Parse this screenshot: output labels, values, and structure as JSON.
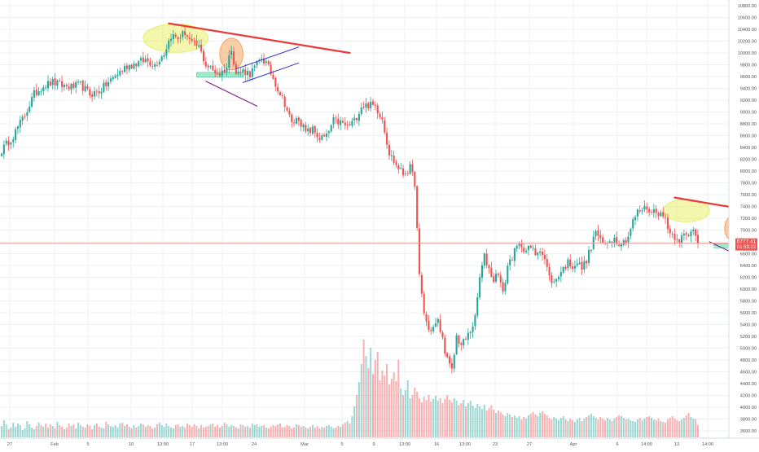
{
  "chart_data": {
    "type": "candlestick",
    "title": "",
    "xlabel": "",
    "ylabel": "",
    "grid": true,
    "ylim": [
      3450,
      10900
    ],
    "y_ticks": [
      3600,
      3800,
      4000,
      4200,
      4400,
      4600,
      4800,
      5000,
      5200,
      5400,
      5600,
      5800,
      6000,
      6200,
      6400,
      6600,
      6800,
      7000,
      7200,
      7400,
      7600,
      7800,
      8000,
      8200,
      8400,
      8600,
      8800,
      9000,
      9200,
      9400,
      9600,
      9800,
      10000,
      10200,
      10400,
      10600,
      10800
    ],
    "y_tick_labels": [
      "3600.00",
      "3800.00",
      "4000.00",
      "4200.00",
      "4400.00",
      "4600.00",
      "4800.00",
      "5000.00",
      "5200.00",
      "5400.00",
      "5600.00",
      "5800.00",
      "6000.00",
      "6200.00",
      "6400.00",
      "6600.00",
      "6800.00",
      "7000.00",
      "7200.00",
      "7400.00",
      "7600.00",
      "7800.00",
      "8000.00",
      "8200.00",
      "8400.00",
      "8600.00",
      "8800.00",
      "9000.00",
      "9200.00",
      "9400.00",
      "9600.00",
      "9800.00",
      "10000.00",
      "10200.00",
      "10400.00",
      "10600.00",
      "10800.00"
    ],
    "x_tick_labels": [
      "27",
      "Feb",
      "5",
      "10",
      "13:00",
      "17",
      "13:00",
      "24",
      "Mar",
      "5",
      "9",
      "13:00",
      "16",
      "13:00",
      "23",
      "27",
      "Apr",
      "6",
      "14:00",
      "13",
      "14:00"
    ],
    "price_level": 6777.41,
    "price_label": "6777.41",
    "countdown_label": "01:53:22",
    "candle_anchors": [
      [
        0,
        8350
      ],
      [
        5,
        8600
      ],
      [
        10,
        8950
      ],
      [
        14,
        9300
      ],
      [
        18,
        9450
      ],
      [
        22,
        9500
      ],
      [
        26,
        9450
      ],
      [
        30,
        9420
      ],
      [
        34,
        9460
      ],
      [
        38,
        9300
      ],
      [
        42,
        9350
      ],
      [
        46,
        9500
      ],
      [
        50,
        9650
      ],
      [
        54,
        9780
      ],
      [
        58,
        9820
      ],
      [
        62,
        9880
      ],
      [
        66,
        9800
      ],
      [
        70,
        10000
      ],
      [
        73,
        10300
      ],
      [
        76,
        10250
      ],
      [
        79,
        10350
      ],
      [
        82,
        10150
      ],
      [
        85,
        10100
      ],
      [
        88,
        9800
      ],
      [
        91,
        9700
      ],
      [
        94,
        9650
      ],
      [
        97,
        9750
      ],
      [
        99,
        10100
      ],
      [
        101,
        9650
      ],
      [
        104,
        9700
      ],
      [
        107,
        9650
      ],
      [
        110,
        9800
      ],
      [
        112,
        9920
      ],
      [
        114,
        9820
      ],
      [
        116,
        9660
      ],
      [
        119,
        9400
      ],
      [
        122,
        9150
      ],
      [
        125,
        8800
      ],
      [
        128,
        8900
      ],
      [
        131,
        8650
      ],
      [
        134,
        8700
      ],
      [
        137,
        8550
      ],
      [
        140,
        8580
      ],
      [
        143,
        8850
      ],
      [
        146,
        8820
      ],
      [
        149,
        8750
      ],
      [
        152,
        8850
      ],
      [
        155,
        9100
      ],
      [
        158,
        9120
      ],
      [
        161,
        9100
      ],
      [
        164,
        8900
      ],
      [
        167,
        8300
      ],
      [
        170,
        8100
      ],
      [
        173,
        7950
      ],
      [
        176,
        8050
      ],
      [
        178,
        7800
      ],
      [
        180,
        6200
      ],
      [
        182,
        5600
      ],
      [
        184,
        5300
      ],
      [
        186,
        5350
      ],
      [
        188,
        5450
      ],
      [
        190,
        5150
      ],
      [
        192,
        4800
      ],
      [
        194,
        4600
      ],
      [
        196,
        5200
      ],
      [
        198,
        5050
      ],
      [
        200,
        5150
      ],
      [
        202,
        5300
      ],
      [
        204,
        5500
      ],
      [
        206,
        6200
      ],
      [
        208,
        6550
      ],
      [
        210,
        6350
      ],
      [
        212,
        6150
      ],
      [
        214,
        6300
      ],
      [
        216,
        5900
      ],
      [
        218,
        6400
      ],
      [
        220,
        6550
      ],
      [
        222,
        6700
      ],
      [
        224,
        6750
      ],
      [
        226,
        6650
      ],
      [
        228,
        6700
      ],
      [
        230,
        6600
      ],
      [
        232,
        6700
      ],
      [
        234,
        6500
      ],
      [
        236,
        6200
      ],
      [
        238,
        6100
      ],
      [
        240,
        6250
      ],
      [
        242,
        6350
      ],
      [
        244,
        6450
      ],
      [
        246,
        6400
      ],
      [
        248,
        6450
      ],
      [
        250,
        6350
      ],
      [
        252,
        6500
      ],
      [
        254,
        6700
      ],
      [
        256,
        7000
      ],
      [
        258,
        6800
      ],
      [
        260,
        6750
      ],
      [
        262,
        6850
      ],
      [
        264,
        6850
      ],
      [
        266,
        6800
      ],
      [
        268,
        6800
      ],
      [
        270,
        6900
      ],
      [
        272,
        7150
      ],
      [
        274,
        7300
      ],
      [
        276,
        7350
      ],
      [
        278,
        7380
      ],
      [
        280,
        7300
      ],
      [
        282,
        7350
      ],
      [
        284,
        7250
      ],
      [
        286,
        7200
      ],
      [
        288,
        6950
      ],
      [
        290,
        6900
      ],
      [
        292,
        6850
      ],
      [
        294,
        6900
      ],
      [
        296,
        6880
      ],
      [
        298,
        7050
      ],
      [
        300,
        6780
      ]
    ],
    "volumes": [
      140,
      210,
      160,
      100,
      120,
      180,
      130,
      170,
      150,
      90,
      110,
      200,
      160,
      120,
      100,
      140,
      180,
      150,
      130,
      170,
      120,
      160,
      140,
      110,
      190,
      150,
      130,
      100,
      120,
      170,
      140,
      160,
      110,
      180,
      150,
      130,
      120,
      160,
      140,
      100,
      150,
      170,
      130,
      120,
      110,
      190,
      160,
      140,
      130,
      150,
      120,
      170,
      180,
      140,
      160,
      130,
      110,
      150,
      120,
      140,
      170,
      160,
      130,
      150,
      140,
      110,
      120,
      160,
      180,
      150,
      130,
      170,
      140,
      120,
      110,
      150,
      160,
      130,
      140,
      120,
      170,
      150,
      130,
      160,
      140,
      110,
      150,
      120,
      130,
      140,
      160,
      170,
      130,
      150,
      120,
      140,
      180,
      160,
      130,
      150,
      140,
      120,
      110,
      160,
      150,
      130,
      140,
      120,
      170,
      150,
      160,
      130,
      140,
      150,
      120,
      110,
      130,
      150,
      140,
      160,
      170,
      120,
      130,
      150,
      140,
      110,
      120,
      160,
      150,
      130,
      140,
      120,
      110,
      130,
      150,
      120,
      140,
      110,
      130,
      120,
      140,
      150,
      130,
      110,
      120,
      140,
      130,
      160,
      180,
      200,
      170,
      260,
      380,
      520,
      680,
      900,
      1200,
      1000,
      850,
      1100,
      780,
      950,
      1050,
      700,
      820,
      760,
      900,
      650,
      720,
      800,
      690,
      950,
      600,
      520,
      580,
      700,
      480,
      520,
      610,
      560,
      480,
      430,
      500,
      460,
      520,
      440,
      470,
      510,
      450,
      480,
      420,
      470,
      520,
      460,
      430,
      480,
      450,
      400,
      420,
      460,
      380,
      420,
      450,
      390,
      360,
      410,
      380,
      350,
      400,
      330,
      360,
      390,
      340,
      300,
      330,
      310,
      280,
      260,
      300,
      280,
      250,
      270,
      240,
      260,
      220,
      250,
      230,
      270,
      290,
      310,
      280,
      260,
      300,
      320,
      290,
      270,
      240,
      220,
      250,
      230,
      210,
      240,
      260,
      220,
      200,
      230,
      210,
      190,
      220,
      240,
      200,
      230,
      250,
      270,
      290,
      260,
      240,
      220,
      250,
      230,
      210,
      240,
      220,
      200,
      230,
      250,
      270,
      260,
      240,
      220,
      230,
      210,
      200,
      190,
      220,
      240,
      210,
      230,
      250,
      260,
      240,
      220,
      210,
      230,
      200,
      190,
      180,
      220,
      240,
      260,
      230,
      210,
      200,
      220,
      240,
      270,
      300,
      250,
      230,
      220
    ],
    "annotations": {
      "upper_resistance_lines": [
        {
          "from": [
            72,
            10500
          ],
          "to": [
            150,
            10000
          ]
        },
        {
          "from": [
            290,
            7550
          ],
          "to": [
            352,
            7140
          ]
        }
      ],
      "rising_channels": [
        {
          "upper": {
            "from": [
              101,
              9730
            ],
            "to": [
              128,
              10100
            ]
          },
          "lower": {
            "from": [
              104,
              9500
            ],
            "to": [
              128,
              9830
            ]
          }
        },
        {
          "upper": {
            "from": [
              320,
              6720
            ],
            "to": [
              340,
              7000
            ]
          },
          "lower": {
            "from": [
              322,
              6520
            ],
            "to": [
              338,
              6730
            ]
          }
        }
      ],
      "falling_lines": [
        {
          "from": [
            88,
            9520
          ],
          "to": [
            110,
            9100
          ]
        },
        {
          "from": [
            305,
            6800
          ],
          "to": [
            325,
            6430
          ]
        }
      ],
      "support_boxes": [
        {
          "x0": 84,
          "x1": 104,
          "y0": 9590,
          "y1": 9670
        },
        {
          "x0": 307,
          "x1": 330,
          "y0": 6700,
          "y1": 6770
        }
      ],
      "highlight_ellipses": [
        {
          "cx": 75,
          "cy": 10250,
          "rx": 14,
          "ry": 240,
          "color": "#e9ef6a"
        },
        {
          "cx": 99,
          "cy": 9980,
          "rx": 5,
          "ry": 270,
          "color": "#f4a460"
        },
        {
          "cx": 295,
          "cy": 7330,
          "rx": 10,
          "ry": 190,
          "color": "#e9ef6a"
        },
        {
          "cx": 316,
          "cy": 7030,
          "rx": 4.5,
          "ry": 230,
          "color": "#f4a460"
        }
      ]
    },
    "colors": {
      "up": "#26a69a",
      "down": "#ef5350",
      "resistance": "#e83a3a",
      "channel": "#3030d0",
      "falling": "#7a1c8a",
      "support": "#7fe6b8",
      "grid": "#eef1f5",
      "axis_text": "#555555",
      "price_line": "#ef9a9a"
    }
  }
}
